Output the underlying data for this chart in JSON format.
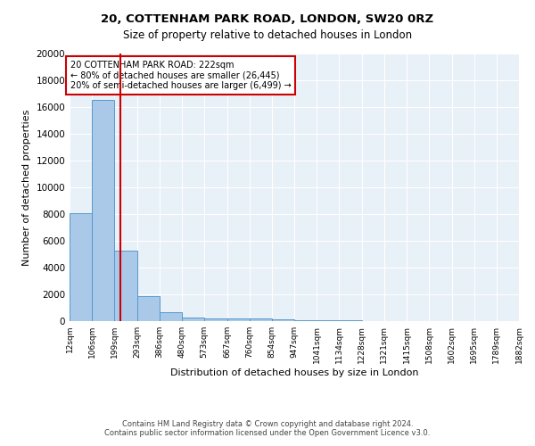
{
  "title1": "20, COTTENHAM PARK ROAD, LONDON, SW20 0RZ",
  "title2": "Size of property relative to detached houses in London",
  "xlabel": "Distribution of detached houses by size in London",
  "ylabel": "Number of detached properties",
  "bar_edges": [
    12,
    106,
    199,
    293,
    386,
    480,
    573,
    667,
    760,
    854,
    947,
    1041,
    1134,
    1228,
    1321,
    1415,
    1508,
    1602,
    1695,
    1789,
    1882
  ],
  "bar_heights": [
    8100,
    16500,
    5300,
    1850,
    700,
    300,
    220,
    200,
    180,
    150,
    80,
    60,
    40,
    30,
    20,
    15,
    10,
    8,
    5,
    3
  ],
  "bar_color": "#aac8e8",
  "bar_edge_color": "#5599cc",
  "red_line_x": 222,
  "annotation_text": "20 COTTENHAM PARK ROAD: 222sqm\n← 80% of detached houses are smaller (26,445)\n20% of semi-detached houses are larger (6,499) →",
  "annotation_box_color": "#ffffff",
  "annotation_border_color": "#cc0000",
  "background_color": "#e8f0f8",
  "grid_color": "#ffffff",
  "ylim": [
    0,
    20000
  ],
  "yticks": [
    0,
    2000,
    4000,
    6000,
    8000,
    10000,
    12000,
    14000,
    16000,
    18000,
    20000
  ],
  "footer_text": "Contains HM Land Registry data © Crown copyright and database right 2024.\nContains public sector information licensed under the Open Government Licence v3.0.",
  "tick_labels": [
    "12sqm",
    "106sqm",
    "199sqm",
    "293sqm",
    "386sqm",
    "480sqm",
    "573sqm",
    "667sqm",
    "760sqm",
    "854sqm",
    "947sqm",
    "1041sqm",
    "1134sqm",
    "1228sqm",
    "1321sqm",
    "1415sqm",
    "1508sqm",
    "1602sqm",
    "1695sqm",
    "1789sqm",
    "1882sqm"
  ]
}
